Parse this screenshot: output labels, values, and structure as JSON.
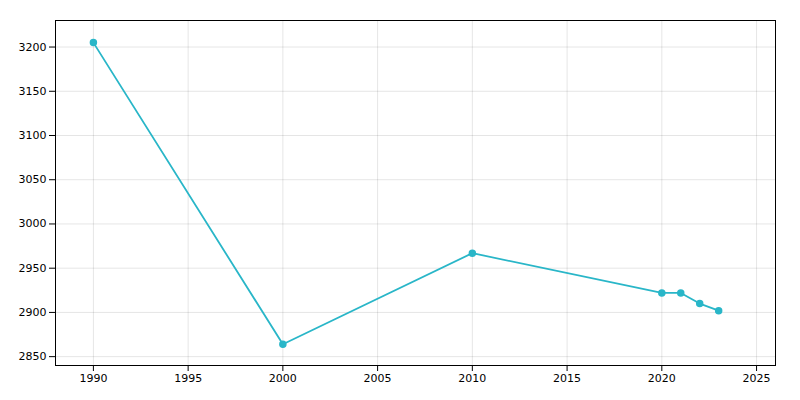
{
  "chart_data": {
    "type": "line",
    "x": [
      1990,
      2000,
      2010,
      2020,
      2021,
      2022,
      2023
    ],
    "values": [
      3205,
      2864,
      2967,
      2922,
      2922,
      2910,
      2902
    ],
    "color": "#29b6c8",
    "marker": "circle",
    "xlim": [
      1988,
      2026
    ],
    "ylim": [
      2840,
      3230
    ],
    "xticks": [
      1990,
      1995,
      2000,
      2005,
      2010,
      2015,
      2020,
      2025
    ],
    "yticks": [
      2850,
      2900,
      2950,
      3000,
      3050,
      3100,
      3150,
      3200
    ],
    "grid": true
  }
}
